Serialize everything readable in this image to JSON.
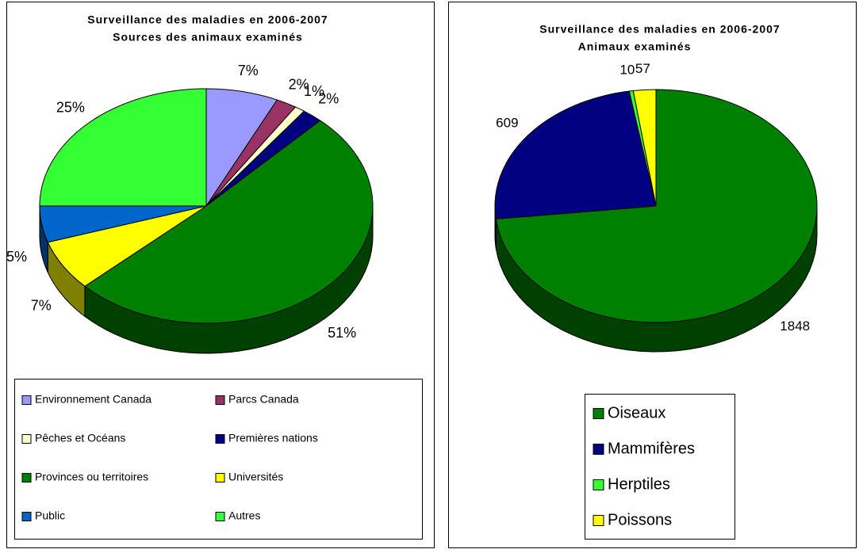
{
  "chart_data": [
    {
      "type": "pie",
      "title": "Surveillance des maladies en 2006-2007",
      "subtitle": "Sources des animaux examinés",
      "categories": [
        "Environnement Canada",
        "Parcs Canada",
        "Pêches et Océans",
        "Premières nations",
        "Provinces ou territoires",
        "Universités",
        "Public",
        "Autres"
      ],
      "values": [
        7,
        2,
        1,
        2,
        51,
        7,
        5,
        25
      ],
      "value_labels": [
        "7%",
        "2%",
        "1%",
        "2%",
        "51%",
        "7%",
        "5%",
        "25%"
      ],
      "colors": [
        "#9999ff",
        "#993366",
        "#ffffcc",
        "#000080",
        "#008000",
        "#ffff00",
        "#0066cc",
        "#33ff33"
      ]
    },
    {
      "type": "pie",
      "title": "Surveillance des maladies en 2006-2007",
      "subtitle": "Animaux examinés",
      "categories": [
        "Oiseaux",
        "Mammifères",
        "Herptiles",
        "Poissons"
      ],
      "values": [
        1848,
        609,
        10,
        57
      ],
      "colors": [
        "#008000",
        "#000080",
        "#33ff33",
        "#ffff00"
      ]
    }
  ]
}
